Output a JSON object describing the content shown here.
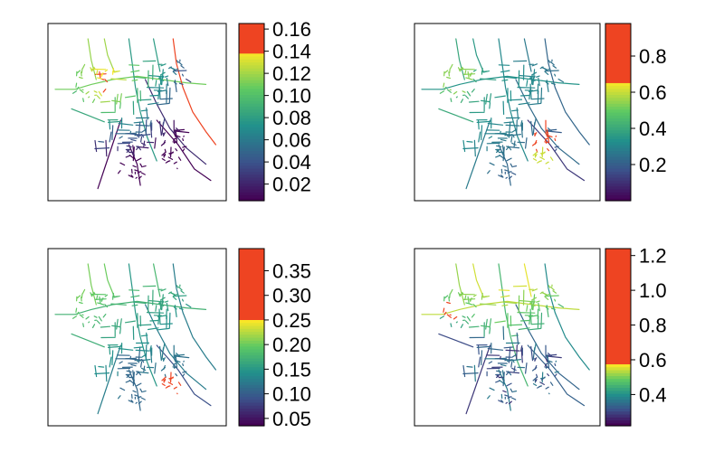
{
  "chart_data": [
    {
      "type": "map",
      "colorbar": {
        "ticks": [
          "0.16",
          "0.14",
          "0.12",
          "0.10",
          "0.08",
          "0.06",
          "0.04",
          "0.02"
        ],
        "range": [
          0.005,
          0.165
        ],
        "tick_values": [
          0.16,
          0.14,
          0.12,
          0.1,
          0.08,
          0.06,
          0.04,
          0.02
        ],
        "saturation_threshold": 0.14,
        "saturated_color": "#ee4422"
      }
    },
    {
      "type": "map",
      "colorbar": {
        "ticks": [
          "0.8",
          "0.6",
          "0.4",
          "0.2"
        ],
        "range": [
          0.0,
          0.98
        ],
        "tick_values": [
          0.8,
          0.6,
          0.4,
          0.2
        ],
        "saturation_threshold": 0.66,
        "saturated_color": "#ee4422"
      }
    },
    {
      "type": "map",
      "colorbar": {
        "ticks": [
          "0.35",
          "0.30",
          "0.25",
          "0.20",
          "0.15",
          "0.10",
          "0.05"
        ],
        "range": [
          0.035,
          0.395
        ],
        "tick_values": [
          0.35,
          0.3,
          0.25,
          0.2,
          0.15,
          0.1,
          0.05
        ],
        "saturation_threshold": 0.25,
        "saturated_color": "#ee4422"
      }
    },
    {
      "type": "map",
      "colorbar": {
        "ticks": [
          "1.2",
          "1.0",
          "0.8",
          "0.6",
          "0.4"
        ],
        "range": [
          0.22,
          1.24
        ],
        "tick_values": [
          1.2,
          1.0,
          0.8,
          0.6,
          0.4
        ],
        "saturation_threshold": 0.57,
        "saturated_color": "#ee4422"
      }
    }
  ],
  "colors": {
    "viridis_stops": [
      "#440154",
      "#3b528b",
      "#21908c",
      "#5dc963",
      "#fde725"
    ],
    "saturated": "#ee4422",
    "frame": "#000000"
  }
}
